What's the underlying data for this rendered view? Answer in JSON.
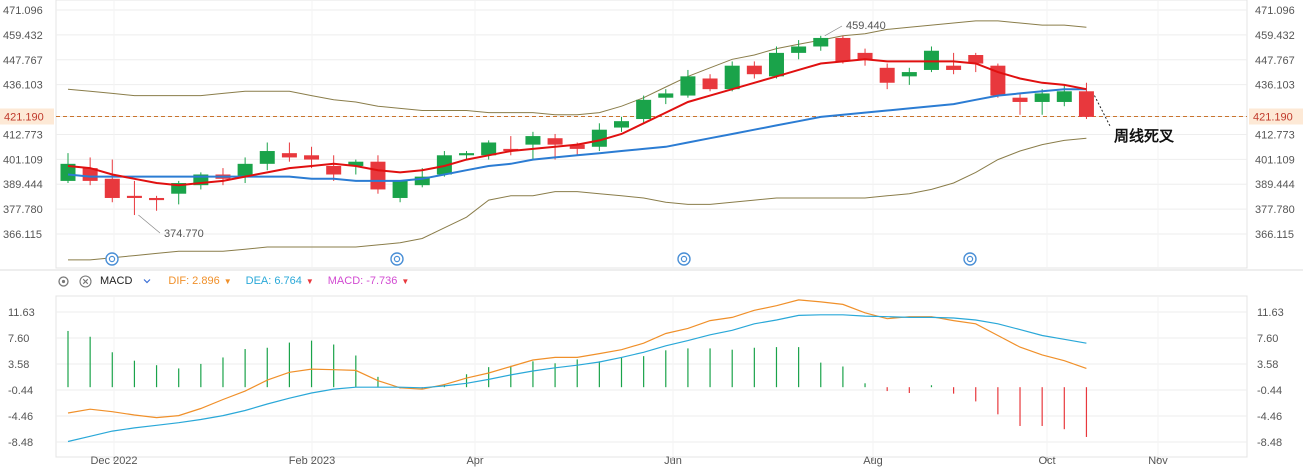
{
  "colors": {
    "up": "#1aa34a",
    "down": "#e8383d",
    "ma_short": "#e01010",
    "ma_long": "#2b7cd3",
    "boll": "#8a7d4a",
    "dif": "#f0902a",
    "dea": "#2aa8d8",
    "last_price_line": "#c9742e",
    "grid": "#eeeeee"
  },
  "price_axis": {
    "ticks": [
      "471.096",
      "459.432",
      "447.767",
      "436.103",
      "421.190",
      "412.773",
      "401.109",
      "389.444",
      "377.780",
      "366.115"
    ],
    "min": 366.115,
    "max": 471.096
  },
  "last_price": "421.190",
  "x_axis": {
    "labels": [
      "Dec 2022",
      "Feb 2023",
      "Apr",
      "Jun",
      "Aug",
      "Oct",
      "Nov"
    ]
  },
  "annotations": {
    "high_label": "459.440",
    "low_label": "374.770",
    "signal_text": "周线死叉"
  },
  "macd_bar": {
    "name": "MACD",
    "dif_label": "DIF:",
    "dif_value": "2.896",
    "dea_label": "DEA:",
    "dea_value": "6.764",
    "macd_label": "MACD:",
    "macd_value": "-7.736"
  },
  "macd_axis": {
    "ticks": [
      "11.63",
      "7.60",
      "3.58",
      "-0.44",
      "-4.46",
      "-8.48"
    ],
    "min": -8.48,
    "max": 11.63
  },
  "chart_data": {
    "type": "candlestick",
    "candles": [
      {
        "o": 391,
        "h": 404,
        "l": 390,
        "c": 399
      },
      {
        "o": 397,
        "h": 402,
        "l": 389,
        "c": 391
      },
      {
        "o": 392,
        "h": 401,
        "l": 381,
        "c": 383
      },
      {
        "o": 384,
        "h": 391,
        "l": 375,
        "c": 383
      },
      {
        "o": 383,
        "h": 384,
        "l": 377,
        "c": 382
      },
      {
        "o": 385,
        "h": 391,
        "l": 380,
        "c": 390
      },
      {
        "o": 389,
        "h": 395,
        "l": 387,
        "c": 394
      },
      {
        "o": 394,
        "h": 397,
        "l": 389,
        "c": 392
      },
      {
        "o": 393,
        "h": 402,
        "l": 390,
        "c": 399
      },
      {
        "o": 399,
        "h": 409,
        "l": 396,
        "c": 405
      },
      {
        "o": 404,
        "h": 409,
        "l": 400,
        "c": 402
      },
      {
        "o": 403,
        "h": 407,
        "l": 397,
        "c": 401
      },
      {
        "o": 398,
        "h": 403,
        "l": 391,
        "c": 394
      },
      {
        "o": 398,
        "h": 401,
        "l": 394,
        "c": 400
      },
      {
        "o": 400,
        "h": 403,
        "l": 385,
        "c": 387
      },
      {
        "o": 383,
        "h": 391,
        "l": 381,
        "c": 391
      },
      {
        "o": 389,
        "h": 397,
        "l": 388,
        "c": 393
      },
      {
        "o": 394,
        "h": 405,
        "l": 393,
        "c": 403
      },
      {
        "o": 403,
        "h": 405,
        "l": 401,
        "c": 404
      },
      {
        "o": 403,
        "h": 410,
        "l": 401,
        "c": 409
      },
      {
        "o": 406,
        "h": 412,
        "l": 403,
        "c": 405
      },
      {
        "o": 408,
        "h": 414,
        "l": 401,
        "c": 412
      },
      {
        "o": 411,
        "h": 413,
        "l": 401,
        "c": 408
      },
      {
        "o": 408,
        "h": 409,
        "l": 403,
        "c": 406
      },
      {
        "o": 407,
        "h": 418,
        "l": 405,
        "c": 415
      },
      {
        "o": 416,
        "h": 421,
        "l": 414,
        "c": 419
      },
      {
        "o": 420,
        "h": 431,
        "l": 418,
        "c": 429
      },
      {
        "o": 430,
        "h": 434,
        "l": 427,
        "c": 432
      },
      {
        "o": 431,
        "h": 443,
        "l": 430,
        "c": 440
      },
      {
        "o": 439,
        "h": 441,
        "l": 433,
        "c": 434
      },
      {
        "o": 434,
        "h": 447,
        "l": 433,
        "c": 445
      },
      {
        "o": 445,
        "h": 447,
        "l": 439,
        "c": 441
      },
      {
        "o": 440,
        "h": 454,
        "l": 439,
        "c": 451
      },
      {
        "o": 451,
        "h": 457,
        "l": 448,
        "c": 454
      },
      {
        "o": 454,
        "h": 459,
        "l": 452,
        "c": 458
      },
      {
        "o": 458,
        "h": 459,
        "l": 446,
        "c": 447
      },
      {
        "o": 451,
        "h": 453,
        "l": 445,
        "c": 448
      },
      {
        "o": 444,
        "h": 446,
        "l": 434,
        "c": 437
      },
      {
        "o": 440,
        "h": 444,
        "l": 436,
        "c": 442
      },
      {
        "o": 443,
        "h": 454,
        "l": 442,
        "c": 452
      },
      {
        "o": 445,
        "h": 451,
        "l": 441,
        "c": 443
      },
      {
        "o": 450,
        "h": 451,
        "l": 442,
        "c": 446
      },
      {
        "o": 445,
        "h": 446,
        "l": 430,
        "c": 431
      },
      {
        "o": 430,
        "h": 432,
        "l": 422,
        "c": 428
      },
      {
        "o": 428,
        "h": 434,
        "l": 422,
        "c": 432
      },
      {
        "o": 428,
        "h": 436,
        "l": 426,
        "c": 433
      },
      {
        "o": 433,
        "h": 437,
        "l": 420,
        "c": 421
      }
    ],
    "ma_short": [
      398,
      397,
      394,
      392,
      390,
      389,
      390,
      391,
      393,
      395,
      397,
      398,
      399,
      398,
      396,
      395,
      396,
      398,
      401,
      403,
      405,
      406,
      407,
      408,
      410,
      413,
      418,
      423,
      428,
      431,
      434,
      437,
      440,
      443,
      446,
      447,
      448,
      447,
      447,
      447,
      447,
      446,
      442,
      439,
      437,
      436,
      434
    ],
    "ma_long": [
      394,
      393,
      393,
      393,
      393,
      393,
      393,
      393,
      393,
      393,
      393,
      392,
      392,
      391,
      391,
      391,
      392,
      394,
      396,
      398,
      399,
      401,
      402,
      403,
      404,
      405,
      406,
      407,
      409,
      411,
      413,
      415,
      417,
      419,
      421,
      422,
      423,
      424,
      425,
      426,
      427,
      429,
      431,
      432,
      433,
      434,
      434
    ],
    "boll_upper": [
      434,
      433,
      432,
      431,
      431,
      431,
      431,
      432,
      433,
      433,
      433,
      431,
      429,
      428,
      426,
      425,
      424,
      424,
      424,
      423,
      423,
      423,
      422,
      422,
      423,
      426,
      430,
      435,
      440,
      444,
      448,
      450,
      453,
      455,
      457,
      459,
      460,
      462,
      463,
      464,
      465,
      466,
      466,
      465,
      464,
      464,
      463
    ],
    "boll_lower": [
      354,
      354,
      355,
      356,
      357,
      358,
      358,
      358,
      359,
      360,
      360,
      360,
      360,
      360,
      361,
      362,
      364,
      369,
      374,
      382,
      384,
      384,
      386,
      386,
      385,
      384,
      383,
      381,
      380,
      380,
      381,
      382,
      383,
      383,
      383,
      383,
      383,
      384,
      385,
      387,
      390,
      395,
      401,
      405,
      408,
      410,
      411
    ],
    "macd_dif": [
      -4.0,
      -3.4,
      -3.8,
      -4.3,
      -4.7,
      -4.4,
      -3.3,
      -1.9,
      -0.6,
      1.1,
      2.3,
      2.8,
      2.7,
      2.6,
      1.0,
      -0.1,
      -0.3,
      0.4,
      1.4,
      2.2,
      3.2,
      4.2,
      4.6,
      4.6,
      5.2,
      5.8,
      6.8,
      8.3,
      9.1,
      10.3,
      10.8,
      11.9,
      12.6,
      13.5,
      13.2,
      12.8,
      11.5,
      10.6,
      10.9,
      10.9,
      10.3,
      9.8,
      8.0,
      6.2,
      5.0,
      4.1,
      2.9
    ],
    "macd_dea": [
      -8.4,
      -7.6,
      -6.8,
      -6.3,
      -5.9,
      -5.5,
      -5.0,
      -4.4,
      -3.6,
      -2.6,
      -1.7,
      -0.9,
      -0.3,
      0.0,
      0.0,
      0.0,
      -0.1,
      0.2,
      0.6,
      1.2,
      1.9,
      2.5,
      3.0,
      3.4,
      3.9,
      4.6,
      5.4,
      6.4,
      7.2,
      8.1,
      8.8,
      9.8,
      10.4,
      11.1,
      11.2,
      11.2,
      11.0,
      10.9,
      10.8,
      10.8,
      10.7,
      10.4,
      9.8,
      8.9,
      8.0,
      7.4,
      6.8
    ],
    "macd_hist": [
      8.7,
      7.8,
      5.4,
      4.1,
      3.4,
      2.9,
      3.6,
      4.6,
      5.9,
      6.1,
      6.9,
      7.2,
      6.6,
      4.9,
      1.6,
      -0.2,
      -0.2,
      0.5,
      2.0,
      3.1,
      3.3,
      4.0,
      3.7,
      4.3,
      4.0,
      4.6,
      4.8,
      5.7,
      6.0,
      6.0,
      5.8,
      6.1,
      6.2,
      6.2,
      3.8,
      3.2,
      0.6,
      -0.6,
      -0.9,
      0.3,
      -1.0,
      -2.2,
      -4.2,
      -6.0,
      -6.0,
      -6.5,
      -7.7
    ]
  }
}
